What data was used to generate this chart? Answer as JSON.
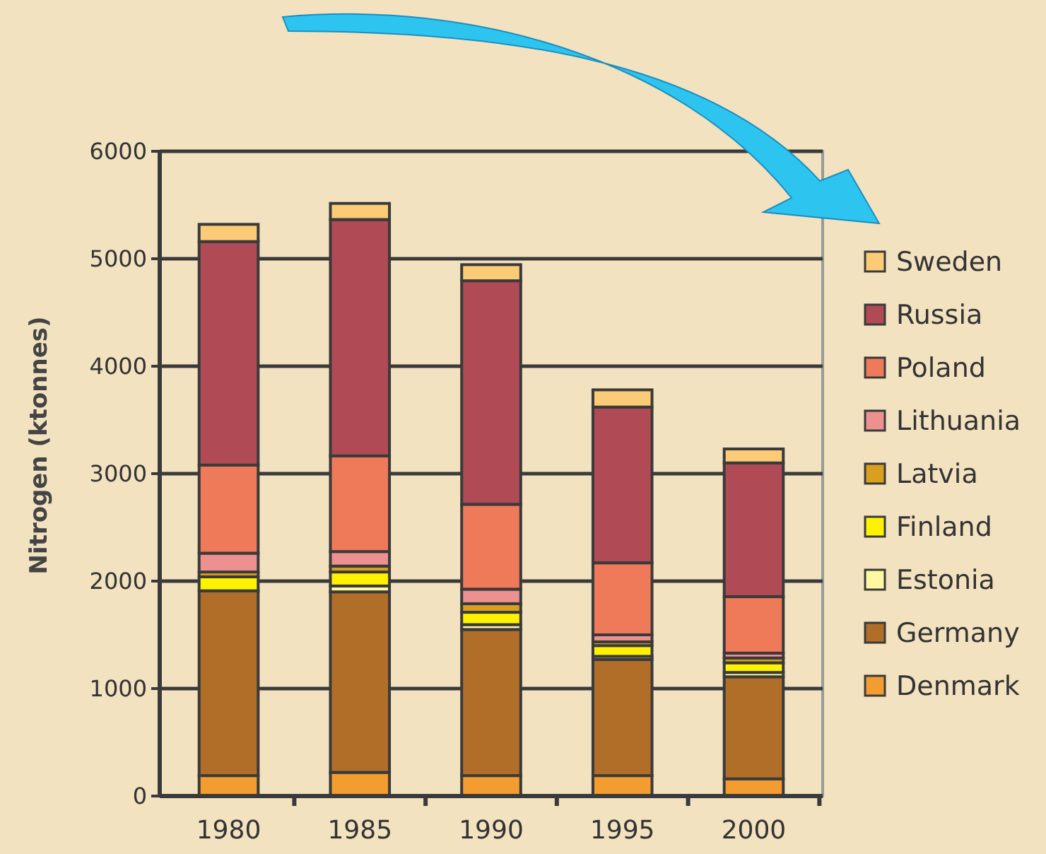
{
  "chart_data": {
    "type": "bar",
    "stacked": true,
    "ylabel": "Nitrogen (ktonnes)",
    "categories": [
      "1980",
      "1985",
      "1990",
      "1995",
      "2000"
    ],
    "ylim": [
      0,
      6000
    ],
    "yticks": [
      0,
      1000,
      2000,
      3000,
      4000,
      5000,
      6000
    ],
    "grid": "y",
    "legend": "right",
    "series": [
      {
        "name": "Denmark",
        "color": "#f39c2f",
        "values": [
          190,
          220,
          190,
          190,
          160
        ]
      },
      {
        "name": "Germany",
        "color": "#b06e28",
        "values": [
          1720,
          1680,
          1360,
          1080,
          950
        ]
      },
      {
        "name": "Estonia",
        "color": "#fff8a0",
        "values": [
          null,
          55,
          45,
          30,
          40
        ]
      },
      {
        "name": "Finland",
        "color": "#fff200",
        "values": [
          130,
          130,
          115,
          100,
          90
        ]
      },
      {
        "name": "Latvia",
        "color": "#d9a020",
        "values": [
          45,
          55,
          80,
          35,
          45
        ]
      },
      {
        "name": "Lithuania",
        "color": "#ec9090",
        "values": [
          175,
          135,
          135,
          65,
          45
        ]
      },
      {
        "name": "Poland",
        "color": "#ee7a5a",
        "values": [
          820,
          890,
          790,
          670,
          525
        ]
      },
      {
        "name": "Russia",
        "color": "#b04a55",
        "values": [
          2080,
          2200,
          2080,
          1450,
          1245
        ]
      },
      {
        "name": "Sweden",
        "color": "#fccb77",
        "values": [
          160,
          150,
          150,
          160,
          130
        ]
      }
    ]
  }
}
